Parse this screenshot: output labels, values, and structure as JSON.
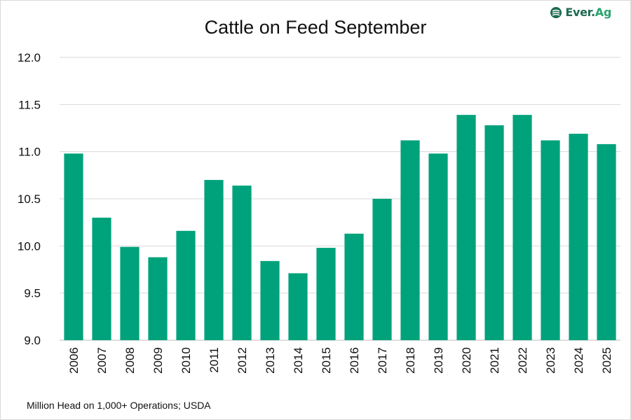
{
  "logo": {
    "name": "Ever.Ag",
    "part1": "Ever.",
    "part2": "Ag",
    "color": "#1d6b4f",
    "accent": "#2aa36b"
  },
  "chart_data": {
    "type": "bar",
    "title": "Cattle on Feed September",
    "source_note": "Million Head on 1,000+ Operations; USDA",
    "xlabel": "",
    "ylabel": "",
    "categories": [
      "2006",
      "2007",
      "2008",
      "2009",
      "2010",
      "2011",
      "2012",
      "2013",
      "2014",
      "2015",
      "2016",
      "2017",
      "2018",
      "2019",
      "2020",
      "2021",
      "2022",
      "2023",
      "2024",
      "2025"
    ],
    "values": [
      10.98,
      10.3,
      9.99,
      9.88,
      10.16,
      10.7,
      10.64,
      9.84,
      9.71,
      9.98,
      10.13,
      10.5,
      11.12,
      10.98,
      11.39,
      11.28,
      11.39,
      11.12,
      11.19,
      11.08
    ],
    "ylim": [
      9.0,
      12.0
    ],
    "yticks": [
      "9.0",
      "9.5",
      "10.0",
      "10.5",
      "11.0",
      "11.5",
      "12.0"
    ],
    "grid": true,
    "legend": "none",
    "bar_color": "#00a27c"
  }
}
